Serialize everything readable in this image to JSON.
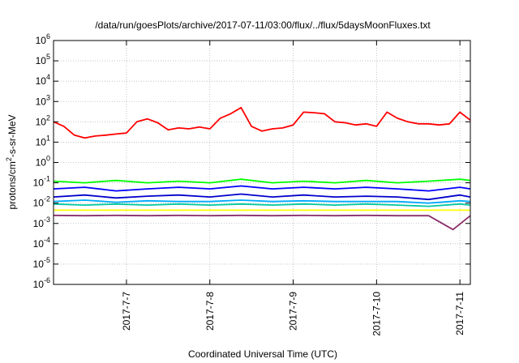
{
  "chart_data": {
    "type": "line",
    "title": "/data/run/goesPlots/archive/2017-07-11/03:00/flux/../flux/5daysMoonFluxes.txt",
    "xlabel": "Coordinated Universal Time (UTC)",
    "ylabel": "protons/cm2-s-sr-MeV",
    "y_scale": "log",
    "ylim_exponents": [
      -6,
      6
    ],
    "y_ticks": [
      "10^-6",
      "10^-5",
      "10^-4",
      "10^-3",
      "10^-2",
      "10^-1",
      "10^0",
      "10^1",
      "10^2",
      "10^3",
      "10^4",
      "10^5",
      "10^6"
    ],
    "xlim": [
      "2017-07-06 03:00",
      "2017-07-11 03:00"
    ],
    "x_ticks": [
      "2017-7-7",
      "2017-7-8",
      "2017-7-9",
      "2017-7-10",
      "2017-7-11"
    ],
    "x_tick_dates": [
      "2017-07-07",
      "2017-07-08",
      "2017-07-09",
      "2017-07-10",
      "2017-07-11"
    ],
    "grid": true,
    "legend": "none",
    "series": [
      {
        "color": "#ff0000",
        "x": [
          "2017-07-06 03:00",
          "2017-07-06 06:00",
          "2017-07-06 09:00",
          "2017-07-06 12:00",
          "2017-07-06 15:00",
          "2017-07-06 18:00",
          "2017-07-06 21:00",
          "2017-07-07 00:00",
          "2017-07-07 03:00",
          "2017-07-07 06:00",
          "2017-07-07 09:00",
          "2017-07-07 12:00",
          "2017-07-07 15:00",
          "2017-07-07 18:00",
          "2017-07-07 21:00",
          "2017-07-08 00:00",
          "2017-07-08 03:00",
          "2017-07-08 06:00",
          "2017-07-08 09:00",
          "2017-07-08 12:00",
          "2017-07-08 15:00",
          "2017-07-08 18:00",
          "2017-07-08 21:00",
          "2017-07-09 00:00",
          "2017-07-09 03:00",
          "2017-07-09 06:00",
          "2017-07-09 09:00",
          "2017-07-09 12:00",
          "2017-07-09 15:00",
          "2017-07-09 18:00",
          "2017-07-09 21:00",
          "2017-07-10 00:00",
          "2017-07-10 03:00",
          "2017-07-10 06:00",
          "2017-07-10 09:00",
          "2017-07-10 12:00",
          "2017-07-10 15:00",
          "2017-07-10 18:00",
          "2017-07-10 21:00",
          "2017-07-11 00:00",
          "2017-07-11 03:00"
        ],
        "values": [
          100,
          60,
          22,
          16,
          20,
          22,
          25,
          28,
          100,
          140,
          90,
          40,
          50,
          45,
          55,
          45,
          150,
          250,
          500,
          60,
          35,
          45,
          50,
          70,
          300,
          280,
          250,
          100,
          90,
          70,
          80,
          60,
          300,
          150,
          100,
          80,
          80,
          70,
          80,
          300,
          120
        ]
      },
      {
        "color": "#00ff00",
        "x": [
          "2017-07-06 03:00",
          "2017-07-06 12:00",
          "2017-07-06 21:00",
          "2017-07-07 06:00",
          "2017-07-07 15:00",
          "2017-07-08 00:00",
          "2017-07-08 09:00",
          "2017-07-08 18:00",
          "2017-07-09 03:00",
          "2017-07-09 12:00",
          "2017-07-09 21:00",
          "2017-07-10 06:00",
          "2017-07-10 15:00",
          "2017-07-11 00:00",
          "2017-07-11 03:00"
        ],
        "values": [
          0.12,
          0.1,
          0.13,
          0.1,
          0.12,
          0.1,
          0.15,
          0.1,
          0.12,
          0.1,
          0.13,
          0.1,
          0.12,
          0.15,
          0.13
        ]
      },
      {
        "color": "#0000ff",
        "x": [
          "2017-07-06 03:00",
          "2017-07-06 12:00",
          "2017-07-06 21:00",
          "2017-07-07 06:00",
          "2017-07-07 15:00",
          "2017-07-08 00:00",
          "2017-07-08 09:00",
          "2017-07-08 18:00",
          "2017-07-09 03:00",
          "2017-07-09 12:00",
          "2017-07-09 21:00",
          "2017-07-10 06:00",
          "2017-07-10 15:00",
          "2017-07-11 00:00",
          "2017-07-11 03:00"
        ],
        "values": [
          0.05,
          0.06,
          0.04,
          0.05,
          0.06,
          0.05,
          0.07,
          0.05,
          0.06,
          0.05,
          0.06,
          0.05,
          0.04,
          0.06,
          0.05
        ]
      },
      {
        "color": "#0000cc",
        "x": [
          "2017-07-06 03:00",
          "2017-07-06 12:00",
          "2017-07-06 21:00",
          "2017-07-07 06:00",
          "2017-07-07 15:00",
          "2017-07-08 00:00",
          "2017-07-08 09:00",
          "2017-07-08 18:00",
          "2017-07-09 03:00",
          "2017-07-09 12:00",
          "2017-07-09 21:00",
          "2017-07-10 06:00",
          "2017-07-10 15:00",
          "2017-07-11 00:00",
          "2017-07-11 03:00"
        ],
        "values": [
          0.02,
          0.025,
          0.018,
          0.022,
          0.025,
          0.02,
          0.028,
          0.02,
          0.025,
          0.02,
          0.022,
          0.02,
          0.015,
          0.025,
          0.02
        ]
      },
      {
        "color": "#00aaff",
        "x": [
          "2017-07-06 03:00",
          "2017-07-06 12:00",
          "2017-07-06 21:00",
          "2017-07-07 06:00",
          "2017-07-07 15:00",
          "2017-07-08 00:00",
          "2017-07-08 09:00",
          "2017-07-08 18:00",
          "2017-07-09 03:00",
          "2017-07-09 12:00",
          "2017-07-09 21:00",
          "2017-07-10 06:00",
          "2017-07-10 15:00",
          "2017-07-11 00:00",
          "2017-07-11 03:00"
        ],
        "values": [
          0.012,
          0.014,
          0.011,
          0.013,
          0.012,
          0.012,
          0.014,
          0.012,
          0.013,
          0.012,
          0.012,
          0.012,
          0.01,
          0.013,
          0.012
        ]
      },
      {
        "color": "#00c8a0",
        "x": [
          "2017-07-06 03:00",
          "2017-07-06 12:00",
          "2017-07-06 21:00",
          "2017-07-07 06:00",
          "2017-07-07 15:00",
          "2017-07-08 00:00",
          "2017-07-08 09:00",
          "2017-07-08 18:00",
          "2017-07-09 03:00",
          "2017-07-09 12:00",
          "2017-07-09 21:00",
          "2017-07-10 06:00",
          "2017-07-10 15:00",
          "2017-07-11 00:00",
          "2017-07-11 03:00"
        ],
        "values": [
          0.009,
          0.008,
          0.009,
          0.008,
          0.009,
          0.008,
          0.009,
          0.008,
          0.009,
          0.008,
          0.009,
          0.008,
          0.007,
          0.009,
          0.008
        ]
      },
      {
        "color": "#ffff00",
        "x": [
          "2017-07-06 03:00",
          "2017-07-07 03:00",
          "2017-07-08 03:00",
          "2017-07-09 03:00",
          "2017-07-10 03:00",
          "2017-07-11 03:00"
        ],
        "values": [
          0.0045,
          0.0045,
          0.0045,
          0.0045,
          0.0045,
          0.0045
        ]
      },
      {
        "color": "#8b2e6b",
        "x": [
          "2017-07-06 03:00",
          "2017-07-06 12:00",
          "2017-07-06 21:00",
          "2017-07-07 06:00",
          "2017-07-07 15:00",
          "2017-07-08 00:00",
          "2017-07-08 09:00",
          "2017-07-08 18:00",
          "2017-07-09 03:00",
          "2017-07-09 12:00",
          "2017-07-09 21:00",
          "2017-07-10 06:00",
          "2017-07-10 15:00",
          "2017-07-10 22:00",
          "2017-07-11 03:00"
        ],
        "values": [
          0.0025,
          0.0024,
          0.0025,
          0.0024,
          0.0025,
          0.0024,
          0.0025,
          0.0024,
          0.0025,
          0.0024,
          0.0025,
          0.0024,
          0.0024,
          0.0005,
          0.0024
        ]
      }
    ]
  }
}
